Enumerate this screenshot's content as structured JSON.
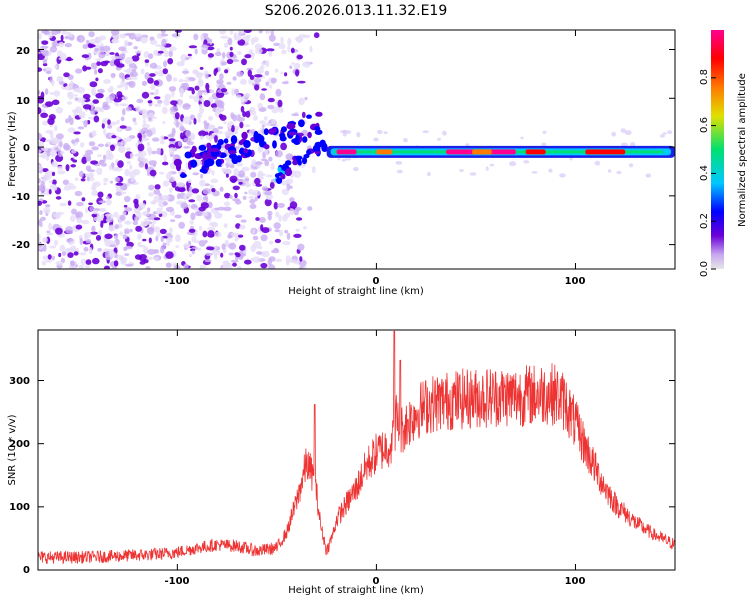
{
  "chart_data": [
    {
      "type": "heatmap",
      "title": "S206.2026.013.11.32.E19",
      "xlabel": "Height of straight line (km)",
      "ylabel": "Frequency (Hz)",
      "xlim": [
        -170,
        150
      ],
      "ylim": [
        -25,
        24
      ],
      "x_ticks": [
        -100,
        0,
        100
      ],
      "y_ticks": [
        20,
        10,
        0,
        -10,
        -20
      ],
      "x_tick_labels": [
        "-100",
        "0",
        "100"
      ],
      "y_tick_labels": [
        "20",
        "10",
        "0",
        "-10",
        "-20"
      ],
      "colorbar": {
        "label": "Normalized spectral amplitude",
        "range": [
          0,
          1
        ],
        "ticks": [
          0.0,
          0.2,
          0.4,
          0.6,
          0.8
        ],
        "tick_labels": [
          "0.0",
          "0.2",
          "0.4",
          "0.6",
          "0.8"
        ]
      },
      "features": {
        "noise_region_x": [
          -170,
          -28
        ],
        "line_start_x": -25,
        "line_end_x": 150,
        "line_frequency": -1,
        "peak_amplitude": 0.97
      },
      "colors": {
        "colormap": [
          "#e6e6e6",
          "#6a00d8",
          "#0000ff",
          "#00c8ff",
          "#00e070",
          "#e0e000",
          "#ff7a00",
          "#ff0000",
          "#ff0090"
        ]
      }
    },
    {
      "type": "line",
      "xlabel": "Height of straight line (km)",
      "ylabel": "SNR (10 * v/v)",
      "xlim": [
        -170,
        150
      ],
      "ylim": [
        0,
        380
      ],
      "x_ticks": [
        -100,
        0,
        100
      ],
      "y_ticks": [
        0,
        100,
        200,
        300
      ],
      "x_tick_labels": [
        "-100",
        "0",
        "100"
      ],
      "y_tick_labels": [
        "0",
        "100",
        "200",
        "300"
      ],
      "series": [
        {
          "name": "SNR",
          "color": "#ee3333",
          "x": [
            -170,
            -150,
            -130,
            -110,
            -100,
            -90,
            -80,
            -70,
            -60,
            -50,
            -45,
            -40,
            -35,
            -32,
            -30,
            -28,
            -25,
            -22,
            -20,
            -18,
            -15,
            -10,
            -5,
            0,
            5,
            8,
            10,
            12,
            15,
            20,
            25,
            30,
            40,
            50,
            60,
            70,
            80,
            85,
            90,
            95,
            100,
            105,
            110,
            115,
            120,
            130,
            140,
            150
          ],
          "y": [
            20,
            20,
            22,
            25,
            28,
            35,
            40,
            38,
            30,
            35,
            60,
            110,
            170,
            150,
            120,
            70,
            30,
            55,
            80,
            90,
            105,
            130,
            165,
            185,
            195,
            200,
            240,
            220,
            230,
            250,
            260,
            265,
            270,
            272,
            275,
            275,
            278,
            280,
            278,
            265,
            230,
            195,
            160,
            130,
            105,
            75,
            55,
            40
          ]
        }
      ],
      "spikes": [
        {
          "x": -31,
          "y": 262
        },
        {
          "x": 9,
          "y": 378
        },
        {
          "x": 12,
          "y": 332
        }
      ]
    }
  ]
}
